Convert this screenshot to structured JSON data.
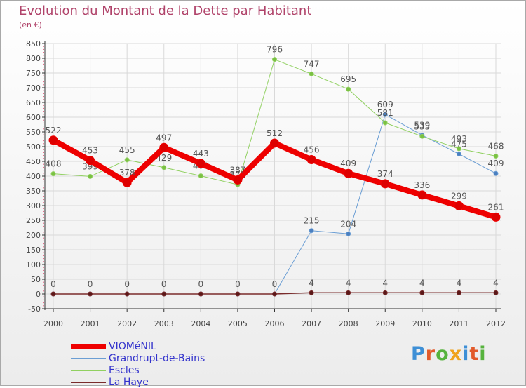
{
  "header": {
    "title": "Evolution du Montant de la Dette par Habitant",
    "subtitle": "(en €)"
  },
  "logo_text": "Proxiti",
  "logo_colors": [
    "#3d8fd6",
    "#e25a2b",
    "#57b33e",
    "#f0a21b",
    "#3d8fd6",
    "#e25a2b",
    "#57b33e"
  ],
  "colors": {
    "grid": "#d9d9d9",
    "axis": "#333333",
    "label": "#444444",
    "minor_tick": "#e06080"
  },
  "chart_data": {
    "type": "line",
    "x": [
      2000,
      2001,
      2002,
      2003,
      2004,
      2005,
      2006,
      2007,
      2008,
      2009,
      2010,
      2011,
      2012
    ],
    "ylim": [
      -50,
      850
    ],
    "ytick_step": 50,
    "grid": true,
    "legend_position": "bottom-left",
    "series": [
      {
        "name": "Grandrupt-de-Bains",
        "color": "#6b9ed4",
        "line_width": 1,
        "marker_color": "#4a7fc0",
        "values": [
          0,
          0,
          0,
          0,
          0,
          0,
          0,
          215,
          204,
          609,
          539,
          475,
          409
        ],
        "labels": [
          "0",
          "0",
          "0",
          "0",
          "0",
          "0",
          "0",
          "215",
          "204",
          "609",
          "539",
          "475",
          "409"
        ]
      },
      {
        "name": "Escles",
        "color": "#90d060",
        "line_width": 1,
        "marker_color": "#7ac142",
        "values": [
          408,
          399,
          455,
          429,
          401,
          371,
          796,
          747,
          695,
          581,
          535,
          493,
          468
        ],
        "labels": [
          "408",
          "399",
          "455",
          "429",
          "401",
          "371",
          "796",
          "747",
          "695",
          "581",
          "535",
          "493",
          "468"
        ]
      },
      {
        "name": "La Haye",
        "color": "#7a2b2b",
        "line_width": 1.5,
        "marker_color": "#5a1818",
        "values": [
          0,
          0,
          0,
          0,
          0,
          0,
          0,
          4,
          4,
          4,
          4,
          4,
          4
        ],
        "labels": [
          "",
          "",
          "",
          "",
          "",
          "",
          "",
          "4",
          "4",
          "4",
          "4",
          "4",
          "4"
        ]
      },
      {
        "name": "VIOMéNIL",
        "color": "#ee0000",
        "line_width": 8,
        "marker_color": "#dd0000",
        "values": [
          522,
          453,
          378,
          497,
          443,
          387,
          512,
          456,
          409,
          374,
          336,
          299,
          261
        ],
        "labels": [
          "522",
          "453",
          "378",
          "497",
          "443",
          "387",
          "512",
          "456",
          "409",
          "374",
          "336",
          "299",
          "261"
        ]
      }
    ],
    "legend": [
      {
        "name": "VIOMéNIL",
        "color": "#ee0000",
        "thickness": 8
      },
      {
        "name": "Grandrupt-de-Bains",
        "color": "#6b9ed4",
        "thickness": 2
      },
      {
        "name": "Escles",
        "color": "#90d060",
        "thickness": 2
      },
      {
        "name": "La Haye",
        "color": "#7a2b2b",
        "thickness": 2
      }
    ]
  }
}
